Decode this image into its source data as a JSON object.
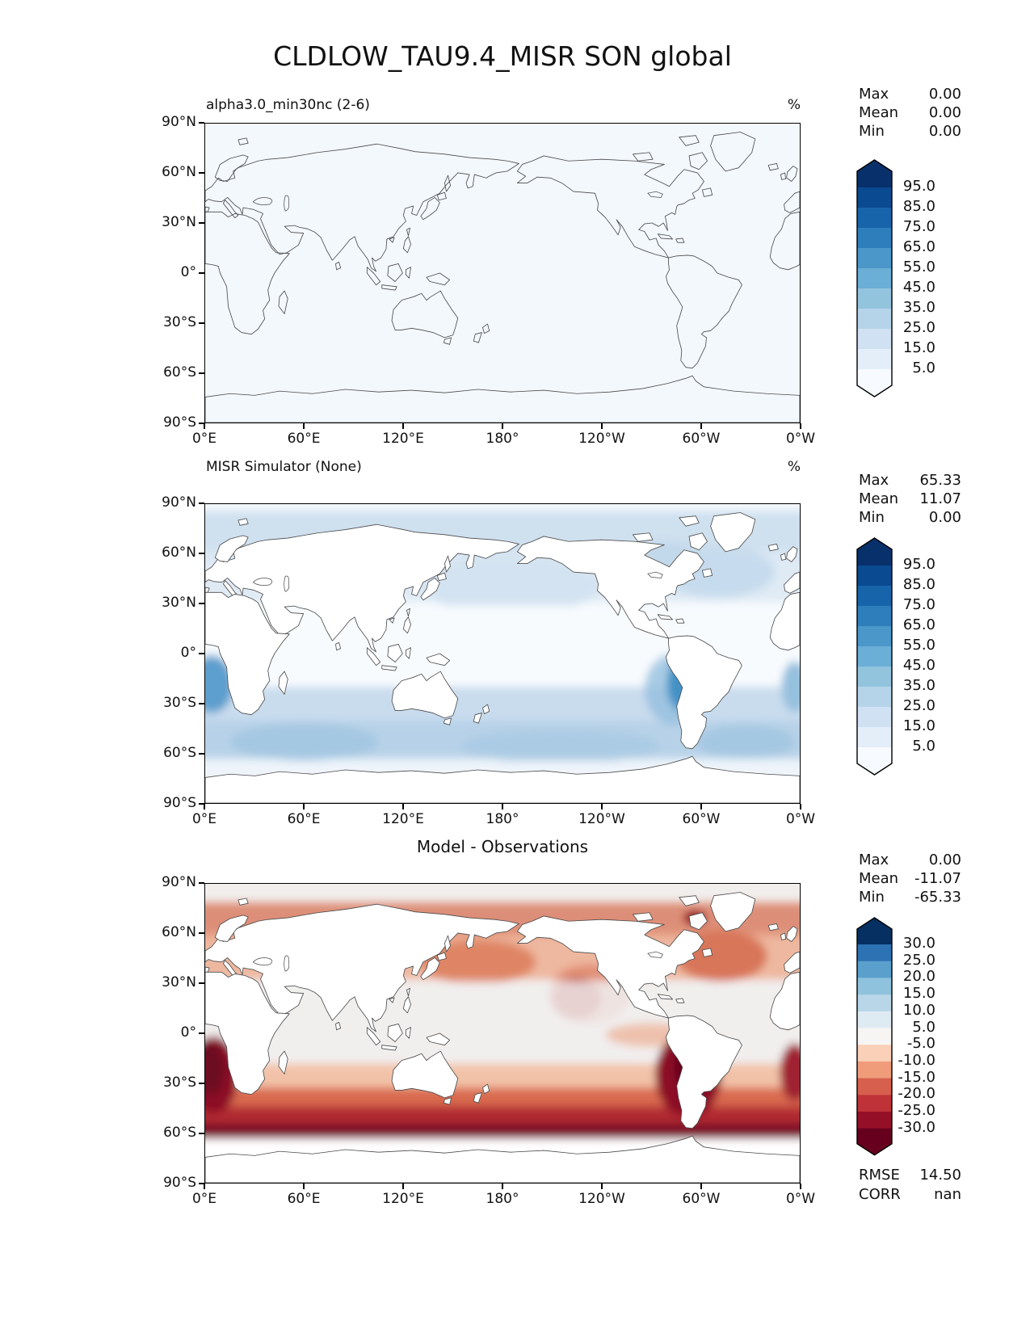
{
  "title": "CLDLOW_TAU9.4_MISR SON global",
  "axes": {
    "x_tick_labels": [
      "0°E",
      "60°E",
      "120°E",
      "180°",
      "120°W",
      "60°W",
      "0°W"
    ],
    "y_tick_labels": [
      "90°N",
      "60°N",
      "30°N",
      "0°",
      "30°S",
      "60°S",
      "90°S"
    ]
  },
  "panels": [
    {
      "title": "alpha3.0_min30nc (2-6)",
      "unit": "%",
      "stats": {
        "max_label": "Max",
        "mean_label": "Mean",
        "min_label": "Min",
        "max": "0.00",
        "mean": "0.00",
        "min": "0.00"
      },
      "colorbar": {
        "tick_labels": [
          "95.0",
          "85.0",
          "75.0",
          "65.0",
          "55.0",
          "45.0",
          "35.0",
          "25.0",
          "15.0",
          "5.0"
        ],
        "colors_top_to_bottom": [
          "#08306b",
          "#0a4a90",
          "#1864aa",
          "#2e7ebc",
          "#4b97c9",
          "#6baed6",
          "#93c4de",
          "#b5d4e9",
          "#cfe1f2",
          "#e3eef9",
          "#f7fbff"
        ]
      }
    },
    {
      "title": "MISR Simulator (None)",
      "unit": "%",
      "stats": {
        "max_label": "Max",
        "mean_label": "Mean",
        "min_label": "Min",
        "max": "65.33",
        "mean": "11.07",
        "min": "0.00"
      },
      "colorbar": {
        "tick_labels": [
          "95.0",
          "85.0",
          "75.0",
          "65.0",
          "55.0",
          "45.0",
          "35.0",
          "25.0",
          "15.0",
          "5.0"
        ],
        "colors_top_to_bottom": [
          "#08306b",
          "#0a4a90",
          "#1864aa",
          "#2e7ebc",
          "#4b97c9",
          "#6baed6",
          "#93c4de",
          "#b5d4e9",
          "#cfe1f2",
          "#e3eef9",
          "#f7fbff"
        ]
      }
    },
    {
      "title": "Model - Observations",
      "unit": "",
      "stats": {
        "max_label": "Max",
        "mean_label": "Mean",
        "min_label": "Min",
        "max": "0.00",
        "mean": "-11.07",
        "min": "-65.33"
      },
      "colorbar": {
        "tick_labels": [
          "30.0",
          "25.0",
          "20.0",
          "15.0",
          "10.0",
          "5.0",
          "-5.0",
          "-10.0",
          "-15.0",
          "-20.0",
          "-25.0",
          "-30.0"
        ],
        "colors_top_to_bottom": [
          "#053061",
          "#2d72b2",
          "#5aa0cc",
          "#8ec2dd",
          "#b8d6e8",
          "#dfebf3",
          "#f7f5f3",
          "#fbd0b9",
          "#f09c7b",
          "#d6604d",
          "#bf3338",
          "#951026",
          "#67001f"
        ]
      },
      "metrics": {
        "rmse_label": "RMSE",
        "rmse": "14.50",
        "corr_label": "CORR",
        "corr": "nan"
      }
    }
  ],
  "chart_data": [
    {
      "type": "heatmap",
      "panel": "top",
      "title": "alpha3.0_min30nc (2-6)",
      "units": "%",
      "colormap": "Blues",
      "contour_levels": [
        5,
        15,
        25,
        35,
        45,
        55,
        65,
        75,
        85,
        95
      ],
      "extend": "both",
      "x_ticks": [
        "0°E",
        "60°E",
        "120°E",
        "180°",
        "120°W",
        "60°W",
        "0°W"
      ],
      "y_ticks": [
        "90°N",
        "60°N",
        "30°N",
        "0°",
        "30°S",
        "60°S",
        "90°S"
      ],
      "stats": {
        "max": 0.0,
        "mean": 0.0,
        "min": 0.0
      },
      "pattern": "field uniformly 0 everywhere (below lowest contour level); only coastlines visible on pale background"
    },
    {
      "type": "heatmap",
      "panel": "middle",
      "title": "MISR Simulator (None)",
      "units": "%",
      "colormap": "Blues",
      "contour_levels": [
        5,
        15,
        25,
        35,
        45,
        55,
        65,
        75,
        85,
        95
      ],
      "extend": "both",
      "x_ticks": [
        "0°E",
        "60°E",
        "120°E",
        "180°",
        "120°W",
        "60°W",
        "0°W"
      ],
      "y_ticks": [
        "90°N",
        "60°N",
        "30°N",
        "0°",
        "30°S",
        "60°S",
        "90°S"
      ],
      "stats": {
        "max": 65.33,
        "mean": 11.07,
        "min": 0.0
      },
      "pattern": "low-cloud fraction 10-40% over mid/high-latitude oceans; maxima ~50-65% in stratocumulus decks off Peru-Chile and Namibia and across the Southern Ocean 40-60S; near zero over land and tropical warm pool"
    },
    {
      "type": "heatmap",
      "panel": "bottom",
      "title": "Model - Observations",
      "units": "%",
      "colormap": "RdBu",
      "contour_levels": [
        -30,
        -25,
        -20,
        -15,
        -10,
        -5,
        5,
        10,
        15,
        20,
        25,
        30
      ],
      "extend": "both",
      "x_ticks": [
        "0°E",
        "60°E",
        "120°E",
        "180°",
        "120°W",
        "60°W",
        "0°W"
      ],
      "y_ticks": [
        "90°N",
        "60°N",
        "30°N",
        "0°",
        "30°S",
        "60°S",
        "90°S"
      ],
      "stats": {
        "max": 0.0,
        "mean": -11.07,
        "min": -65.33
      },
      "metrics": {
        "rmse": 14.5,
        "corr": "nan"
      },
      "pattern": "negative bias over all oceans; strongest (< -30) in Southern Ocean 45-62S and off Peru-Chile and Namibia coasts; moderate -10 to -20 in North Pacific, North Atlantic and Arctic coastal seas; near zero over land and central tropics"
    }
  ]
}
